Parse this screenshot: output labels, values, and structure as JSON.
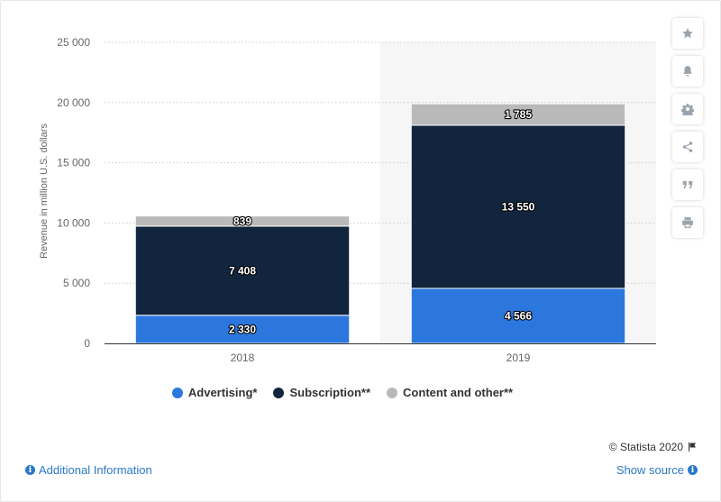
{
  "chart_data": {
    "type": "bar",
    "stacked": true,
    "categories": [
      "2018",
      "2019"
    ],
    "series": [
      {
        "name": "Advertising*",
        "values": [
          2330,
          4566
        ],
        "color": "#2b77de"
      },
      {
        "name": "Subscription**",
        "values": [
          7408,
          13550
        ],
        "color": "#11263e"
      },
      {
        "name": "Content and other**",
        "values": [
          839,
          1785
        ],
        "color": "#b9b9b9"
      }
    ],
    "data_labels": [
      [
        "2 330",
        "4 566"
      ],
      [
        "7 408",
        "13 550"
      ],
      [
        "839",
        "1 785"
      ]
    ],
    "ylabel": "Revenue in million U.S. dollars",
    "ylim": [
      0,
      25000
    ],
    "yticks": [
      0,
      5000,
      10000,
      15000,
      20000,
      25000
    ],
    "ytick_labels": [
      "0",
      "5 000",
      "10 000",
      "15 000",
      "20 000",
      "25 000"
    ],
    "grid": true,
    "legend_position": "bottom",
    "highlighted_category": "2019"
  },
  "sidebar": {
    "icons": [
      "star-icon",
      "bell-icon",
      "gear-icon",
      "share-icon",
      "quote-icon",
      "print-icon"
    ]
  },
  "footer": {
    "credit": "© Statista 2020",
    "additional_info": "Additional Information",
    "show_source": "Show source"
  }
}
